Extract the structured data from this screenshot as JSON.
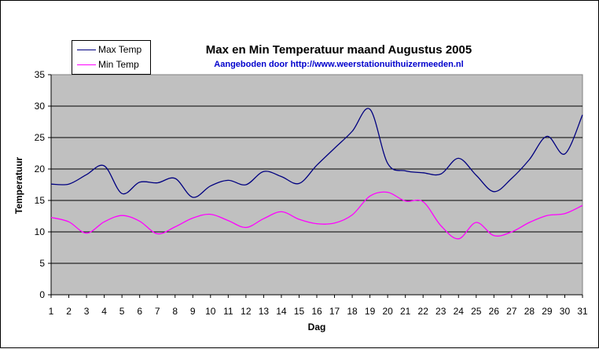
{
  "chart_data": {
    "type": "line",
    "title": "Max en Min Temperatuur maand Augustus 2005",
    "subtitle": "Aangeboden door http://www.weerstationuithuizermeeden.nl",
    "xlabel": "Dag",
    "ylabel": "Temperatuur",
    "ylim": [
      0,
      35
    ],
    "yticks": [
      0,
      5,
      10,
      15,
      20,
      25,
      30,
      35
    ],
    "x": [
      1,
      2,
      3,
      4,
      5,
      6,
      7,
      8,
      9,
      10,
      11,
      12,
      13,
      14,
      15,
      16,
      17,
      18,
      19,
      20,
      21,
      22,
      23,
      24,
      25,
      26,
      27,
      28,
      29,
      30,
      31
    ],
    "series": [
      {
        "name": "Max Temp",
        "color": "#000080",
        "values": [
          17.6,
          17.6,
          19.1,
          20.5,
          16.1,
          17.9,
          17.8,
          18.5,
          15.5,
          17.3,
          18.2,
          17.5,
          19.6,
          18.8,
          17.7,
          20.6,
          23.3,
          26.0,
          29.5,
          20.9,
          19.7,
          19.4,
          19.2,
          21.7,
          19.0,
          16.4,
          18.5,
          21.5,
          25.2,
          22.4,
          28.6
        ]
      },
      {
        "name": "Min Temp",
        "color": "#ff00ff",
        "values": [
          12.3,
          11.6,
          9.8,
          11.6,
          12.6,
          11.7,
          9.7,
          10.8,
          12.2,
          12.8,
          11.8,
          10.7,
          12.1,
          13.2,
          12.0,
          11.3,
          11.4,
          12.7,
          15.7,
          16.3,
          14.9,
          14.8,
          11.0,
          8.9,
          11.5,
          9.4,
          10.0,
          11.5,
          12.6,
          12.9,
          14.2
        ]
      }
    ],
    "legend_position": "top-left",
    "grid": true,
    "plot_background": "#c0c0c0"
  }
}
